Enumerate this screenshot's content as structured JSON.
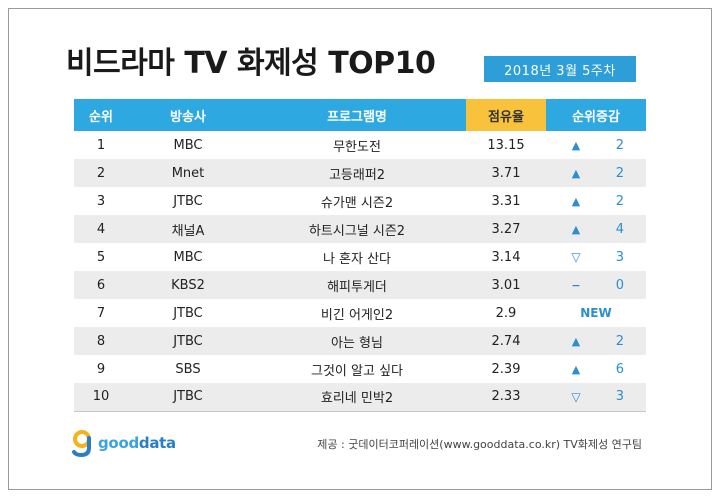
{
  "title": "비드라마 TV 화제성 TOP10",
  "week": "2018년  3월 5주차",
  "headers": [
    "순위",
    "방송사",
    "프로그램명",
    "점유율",
    "순위증감"
  ],
  "rows": [
    {
      "rank": "1",
      "station": "MBC",
      "program": "무한도전",
      "share": "13.15",
      "dir": "up",
      "arrow": "▲",
      "change": "2"
    },
    {
      "rank": "2",
      "station": "Mnet",
      "program": "고등래퍼2",
      "share": "3.71",
      "dir": "up",
      "arrow": "▲",
      "change": "2"
    },
    {
      "rank": "3",
      "station": "JTBC",
      "program": "슈가맨 시즌2",
      "share": "3.31",
      "dir": "up",
      "arrow": "▲",
      "change": "2"
    },
    {
      "rank": "4",
      "station": "채널A",
      "program": "하트시그널 시즌2",
      "share": "3.27",
      "dir": "up",
      "arrow": "▲",
      "change": "4"
    },
    {
      "rank": "5",
      "station": "MBC",
      "program": "나 혼자 산다",
      "share": "3.14",
      "dir": "down",
      "arrow": "▽",
      "change": "3"
    },
    {
      "rank": "6",
      "station": "KBS2",
      "program": "해피투게더",
      "share": "3.01",
      "dir": "flat",
      "arrow": "−",
      "change": "0"
    },
    {
      "rank": "7",
      "station": "JTBC",
      "program": "비긴 어게인2",
      "share": "2.9",
      "dir": "new",
      "arrow": "",
      "change": "NEW"
    },
    {
      "rank": "8",
      "station": "JTBC",
      "program": "아는 형님",
      "share": "2.74",
      "dir": "up",
      "arrow": "▲",
      "change": "2"
    },
    {
      "rank": "9",
      "station": "SBS",
      "program": "그것이 알고 싶다",
      "share": "2.39",
      "dir": "up",
      "arrow": "▲",
      "change": "6"
    },
    {
      "rank": "10",
      "station": "JTBC",
      "program": "효리네 민박2",
      "share": "2.33",
      "dir": "down",
      "arrow": "▽",
      "change": "3"
    }
  ],
  "logo": {
    "part1": "good",
    "part2": "data"
  },
  "source": "제공 : 굿데이터코퍼레이션(www.gooddata.co.kr) TV화제성 연구팀",
  "colors": {
    "header_blue": "#2ea8e0",
    "header_yellow": "#f9c23c",
    "accent": "#2a8fd0"
  }
}
